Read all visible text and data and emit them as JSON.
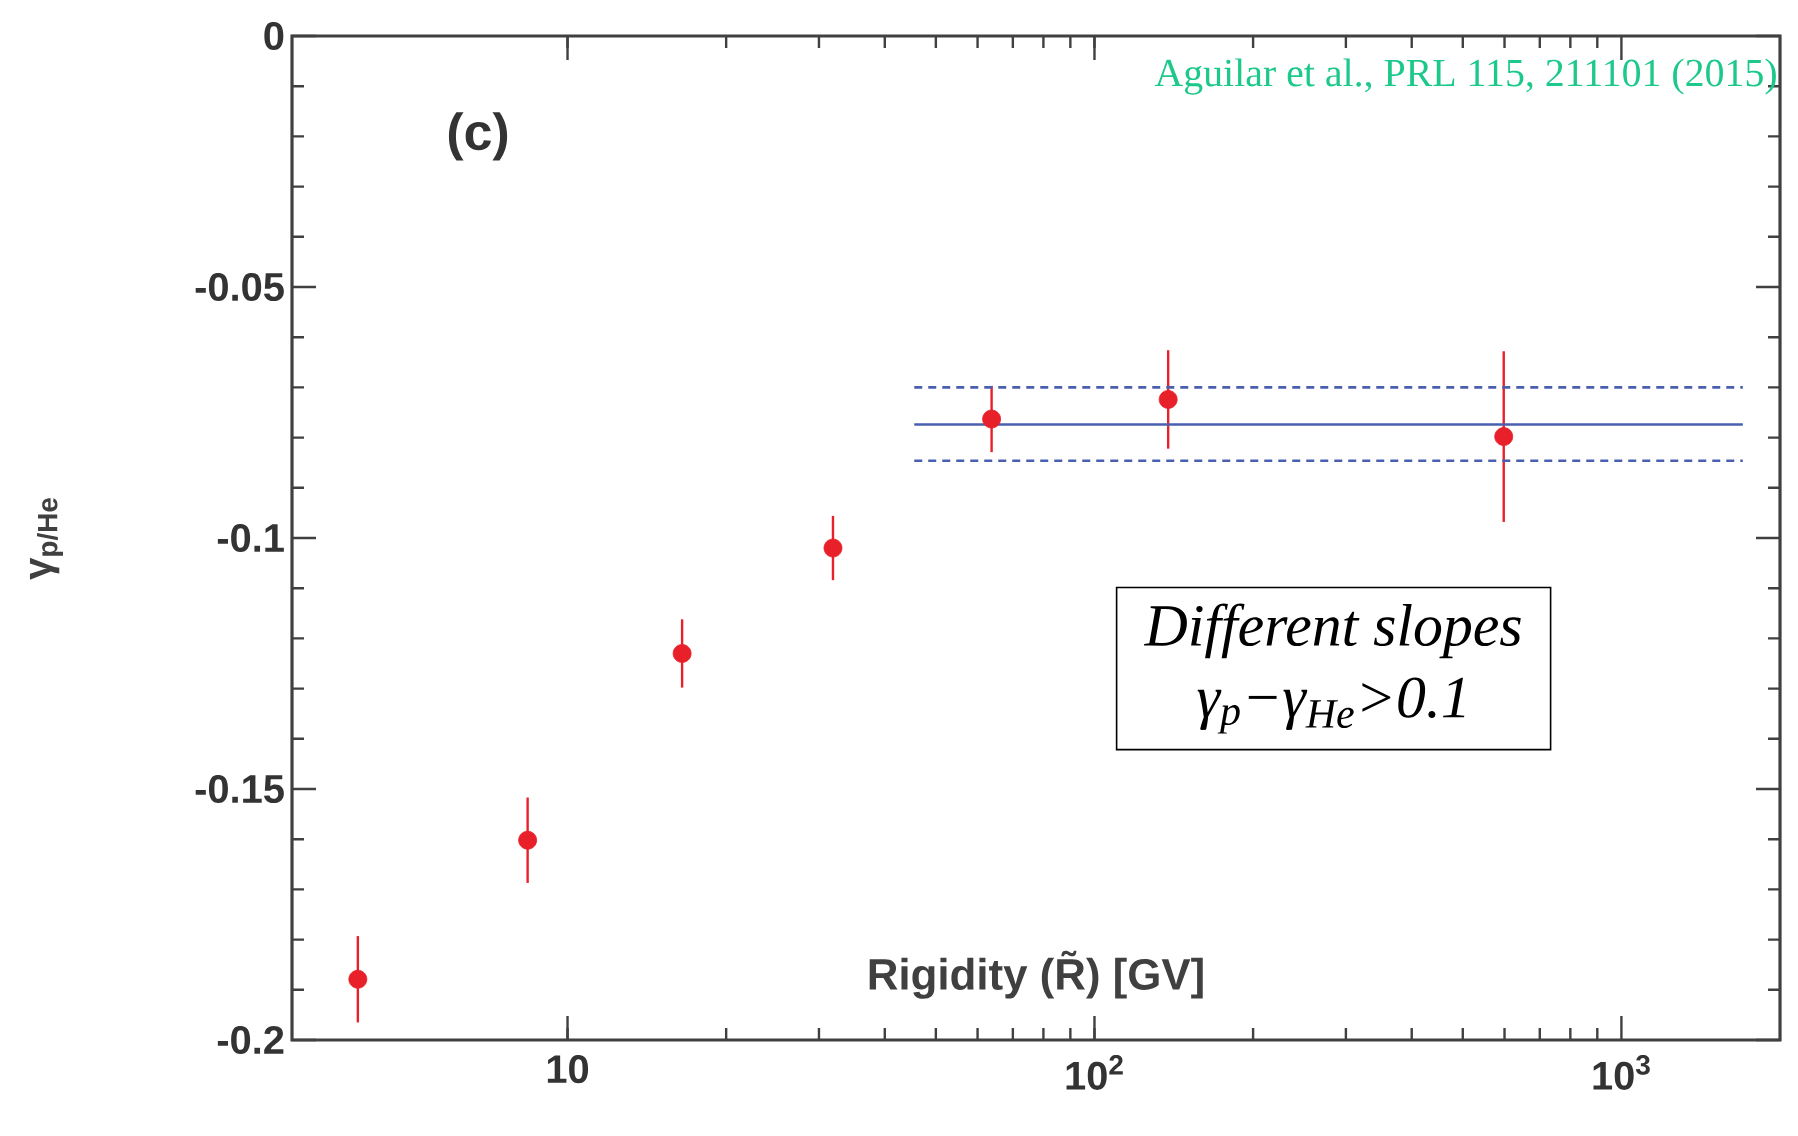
{
  "chart_data": {
    "type": "scatter",
    "ylabel": "γ$_{p/He}$",
    "xlabel": "Rigidity (R̃) [GV]",
    "annotations": [
      "(c)",
      "Aguilar et al., PRL 115, 211101 (2015)",
      "Different slopes",
      "γ$_{p}$−γ$_{He}$>0.1"
    ],
    "log": "x",
    "marker": "circle",
    "xlim": [
      3,
      2000
    ],
    "xticks": [
      10,
      {
        "value": 100,
        "label": "10$^{2}$"
      },
      {
        "value": 1000,
        "label": "10$^{3}$"
      }
    ],
    "ylim": [
      -0.2,
      0
    ],
    "yticks": [
      -0.2,
      -0.15,
      -0.1,
      -0.05,
      0
    ],
    "series": [
      {
        "color": "#e8202a",
        "x": [
          4.0,
          8.4,
          16.5,
          31.9,
          63.8,
          138,
          598
        ],
        "values": [
          -0.1879,
          -0.1602,
          -0.123,
          -0.102,
          -0.0763,
          -0.0724,
          -0.0798
        ],
        "errors": [
          0.0086,
          0.0085,
          0.0068,
          0.0064,
          0.0066,
          0.0098,
          0.017
        ]
      },
      {
        "type": "line",
        "color": "#4a5fb0",
        "marker": "none",
        "line_style": "solid",
        "x": [
          45.5,
          1700
        ],
        "values": [
          -0.0774,
          -0.0774
        ]
      },
      {
        "type": "line",
        "color": "#4a5fb0",
        "marker": "none",
        "line_style": "dashed",
        "x": [
          45.5,
          1700
        ],
        "values": [
          -0.07,
          -0.07
        ]
      },
      {
        "type": "line",
        "color": "#4a5fb0",
        "marker": "none",
        "line_style": "dashed",
        "x": [
          45.5,
          1700
        ],
        "values": [
          -0.0846,
          -0.0846
        ]
      }
    ]
  }
}
